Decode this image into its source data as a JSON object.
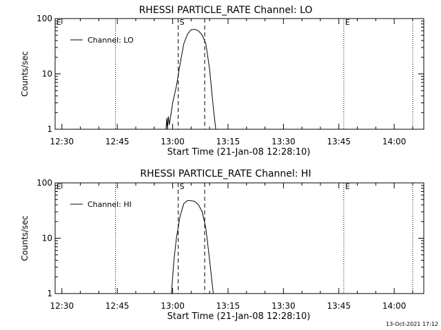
{
  "footer_timestamp": "13-Oct-2021 17:12",
  "chart_data": [
    {
      "type": "line",
      "title": "RHESSI PARTICLE_RATE Channel: LO",
      "xlabel": "Start Time (21-Jan-08 12:28:10)",
      "ylabel": "Counts/sec",
      "yscale": "log",
      "ylim": [
        1,
        100
      ],
      "xlim": [
        "12:28:10",
        "14:08:00"
      ],
      "x_ticks": [
        "12:30",
        "12:45",
        "13:00",
        "13:15",
        "13:30",
        "13:45",
        "14:00"
      ],
      "y_ticks": [
        "1",
        "10",
        "100"
      ],
      "legend": {
        "placement": "top-left"
      },
      "series": [
        {
          "name": "Channel: LO",
          "points": [
            [
              "12:58:12",
              1
            ],
            [
              "12:58:25",
              1.6
            ],
            [
              "12:58:35",
              1
            ],
            [
              "12:58:50",
              1.7
            ],
            [
              "12:59:05",
              1.2
            ],
            [
              "12:59:30",
              1.8
            ],
            [
              "13:00:00",
              3
            ],
            [
              "13:01:00",
              6
            ],
            [
              "13:02:00",
              15
            ],
            [
              "13:03:00",
              35
            ],
            [
              "13:04:00",
              52
            ],
            [
              "13:05:00",
              63
            ],
            [
              "13:06:00",
              64
            ],
            [
              "13:07:00",
              60
            ],
            [
              "13:08:00",
              50
            ],
            [
              "13:09:00",
              35
            ],
            [
              "13:10:00",
              12
            ],
            [
              "13:11:00",
              2.5
            ],
            [
              "13:11:40",
              1
            ]
          ]
        }
      ],
      "markers": [
        {
          "label": "E",
          "time": "12:28:10",
          "style": "dotted"
        },
        {
          "label": "",
          "time": "12:44:30",
          "style": "dotted"
        },
        {
          "label": "S",
          "time": "13:01:30",
          "style": "dashed"
        },
        {
          "label": "",
          "time": "13:08:40",
          "style": "dashed"
        },
        {
          "label": "E",
          "time": "13:46:20",
          "style": "dotted"
        },
        {
          "label": "",
          "time": "14:05:00",
          "style": "dotted"
        }
      ]
    },
    {
      "type": "line",
      "title": "RHESSI PARTICLE_RATE Channel: HI",
      "xlabel": "Start Time (21-Jan-08 12:28:10)",
      "ylabel": "Counts/sec",
      "yscale": "log",
      "ylim": [
        1,
        100
      ],
      "xlim": [
        "12:28:10",
        "14:08:00"
      ],
      "x_ticks": [
        "12:30",
        "12:45",
        "13:00",
        "13:15",
        "13:30",
        "13:45",
        "14:00"
      ],
      "y_ticks": [
        "1",
        "10",
        "100"
      ],
      "legend": {
        "placement": "top-left"
      },
      "series": [
        {
          "name": "Channel: HI",
          "points": [
            [
              "12:59:40",
              1
            ],
            [
              "13:00:20",
              4
            ],
            [
              "13:01:00",
              10
            ],
            [
              "13:02:00",
              25
            ],
            [
              "13:03:00",
              42
            ],
            [
              "13:04:00",
              48
            ],
            [
              "13:05:00",
              48
            ],
            [
              "13:06:00",
              46
            ],
            [
              "13:07:00",
              40
            ],
            [
              "13:08:00",
              30
            ],
            [
              "13:09:00",
              15
            ],
            [
              "13:10:00",
              4
            ],
            [
              "13:11:00",
              1
            ]
          ]
        }
      ],
      "markers": [
        {
          "label": "E",
          "time": "12:28:10",
          "style": "dotted"
        },
        {
          "label": "",
          "time": "12:44:30",
          "style": "dotted"
        },
        {
          "label": "S",
          "time": "13:01:30",
          "style": "dashed"
        },
        {
          "label": "",
          "time": "13:08:40",
          "style": "dashed"
        },
        {
          "label": "E",
          "time": "13:46:20",
          "style": "dotted"
        },
        {
          "label": "",
          "time": "14:05:00",
          "style": "dotted"
        }
      ]
    }
  ]
}
